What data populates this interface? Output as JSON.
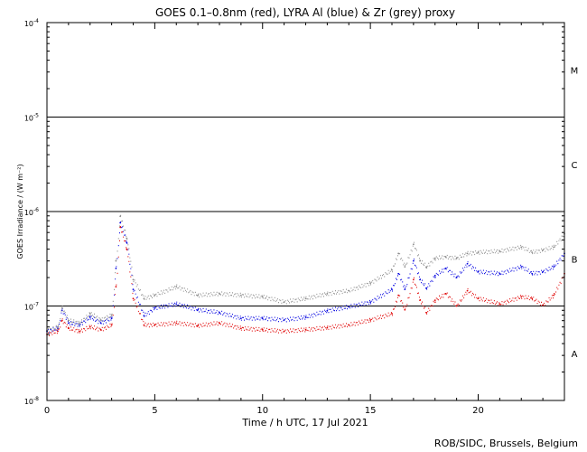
{
  "title": "GOES 0.1–0.8nm (red), LYRA Al (blue) & Zr (grey) proxy",
  "credit": "ROB/SIDC, Brussels, Belgium",
  "chart_data": {
    "type": "scatter",
    "title": "GOES 0.1–0.8nm (red), LYRA Al (blue) & Zr (grey) proxy",
    "xlabel": "Time / h UTC, 17 Jul 2021",
    "ylabel": "GOES Irradiance / (W m⁻²)",
    "xlim": [
      0,
      24
    ],
    "ylim_log10": [
      -8,
      -4
    ],
    "yscale": "log",
    "x_ticks": [
      {
        "value": 0,
        "label": "0"
      },
      {
        "value": 5,
        "label": "5"
      },
      {
        "value": 10,
        "label": "10"
      },
      {
        "value": 15,
        "label": "15"
      },
      {
        "value": 20,
        "label": "20"
      }
    ],
    "y_ticks": [
      {
        "exp": -8,
        "label": "10",
        "sup": "-8"
      },
      {
        "exp": -7,
        "label": "10",
        "sup": "-7"
      },
      {
        "exp": -6,
        "label": "10",
        "sup": "-6"
      },
      {
        "exp": -5,
        "label": "10",
        "sup": "-5"
      },
      {
        "exp": -4,
        "label": "10",
        "sup": "-4"
      }
    ],
    "threshold_lines_log10": [
      -7,
      -6,
      -5
    ],
    "flare_classes": [
      {
        "label": "A",
        "log10_center": -7.5
      },
      {
        "label": "B",
        "log10_center": -6.5
      },
      {
        "label": "C",
        "log10_center": -5.5
      },
      {
        "label": "M",
        "log10_center": -4.5
      }
    ],
    "series": [
      {
        "name": "red",
        "color": "#e00000",
        "x": [
          0,
          0.5,
          0.7,
          1.0,
          1.5,
          2.0,
          2.5,
          3.0,
          3.2,
          3.4,
          3.7,
          4.0,
          4.5,
          5.0,
          6.0,
          7.0,
          8.0,
          9.0,
          10.0,
          11.0,
          12.0,
          13.0,
          14.0,
          15.0,
          16.0,
          16.3,
          16.6,
          17.0,
          17.3,
          17.6,
          18.0,
          18.5,
          19.0,
          19.5,
          20.0,
          21.0,
          22.0,
          22.5,
          23.0,
          23.5,
          24.0
        ],
        "y": [
          5e-08,
          5.4e-08,
          7e-08,
          5.8e-08,
          5.4e-08,
          6e-08,
          5.6e-08,
          6.3e-08,
          1.6e-07,
          6.8e-07,
          4e-07,
          1.2e-07,
          6.3e-08,
          6.3e-08,
          6.6e-08,
          6.2e-08,
          6.6e-08,
          5.8e-08,
          5.6e-08,
          5.4e-08,
          5.6e-08,
          5.9e-08,
          6.3e-08,
          7.1e-08,
          8.3e-08,
          1.3e-07,
          9.1e-08,
          1.9e-07,
          1.15e-07,
          8.5e-08,
          1.15e-07,
          1.35e-07,
          1e-07,
          1.45e-07,
          1.2e-07,
          1.05e-07,
          1.25e-07,
          1.2e-07,
          1.02e-07,
          1.3e-07,
          2.2e-07
        ]
      },
      {
        "name": "blue",
        "color": "#0000e0",
        "x": [
          0,
          0.5,
          0.7,
          1.0,
          1.5,
          2.0,
          2.5,
          3.0,
          3.2,
          3.4,
          3.7,
          4.0,
          4.5,
          5.0,
          6.0,
          7.0,
          8.0,
          9.0,
          10.0,
          11.0,
          12.0,
          13.0,
          14.0,
          15.0,
          16.0,
          16.3,
          16.6,
          17.0,
          17.3,
          17.6,
          18.0,
          18.5,
          19.0,
          19.5,
          20.0,
          21.0,
          22.0,
          22.5,
          23.0,
          23.5,
          24.0
        ],
        "y": [
          5.4e-08,
          5.8e-08,
          9e-08,
          6.6e-08,
          6.3e-08,
          7.6e-08,
          6.6e-08,
          7.4e-08,
          2.5e-07,
          7.6e-07,
          4.7e-07,
          1.5e-07,
          7.9e-08,
          9.5e-08,
          1.05e-07,
          9.1e-08,
          8.5e-08,
          7.4e-08,
          7.4e-08,
          7.1e-08,
          7.6e-08,
          8.9e-08,
          9.8e-08,
          1.1e-07,
          1.5e-07,
          2.2e-07,
          1.5e-07,
          3e-07,
          1.9e-07,
          1.55e-07,
          2.1e-07,
          2.5e-07,
          2e-07,
          2.8e-07,
          2.3e-07,
          2.2e-07,
          2.6e-07,
          2.2e-07,
          2.3e-07,
          2.6e-07,
          3.6e-07
        ]
      },
      {
        "name": "grey",
        "color": "#8a8a8a",
        "x": [
          0,
          0.5,
          0.7,
          1.0,
          1.5,
          2.0,
          2.5,
          3.0,
          3.2,
          3.4,
          3.7,
          4.0,
          4.5,
          5.0,
          6.0,
          7.0,
          8.0,
          9.0,
          10.0,
          11.0,
          12.0,
          13.0,
          14.0,
          15.0,
          16.0,
          16.3,
          16.6,
          17.0,
          17.3,
          17.6,
          18.0,
          18.5,
          19.0,
          19.5,
          20.0,
          21.0,
          22.0,
          22.5,
          23.0,
          23.5,
          24.0
        ],
        "y": [
          5.5e-08,
          6e-08,
          9.5e-08,
          7e-08,
          6.6e-08,
          8.3e-08,
          7.1e-08,
          8e-08,
          3e-07,
          8.9e-07,
          5.2e-07,
          1.9e-07,
          1.2e-07,
          1.3e-07,
          1.6e-07,
          1.3e-07,
          1.35e-07,
          1.3e-07,
          1.25e-07,
          1.1e-07,
          1.2e-07,
          1.35e-07,
          1.45e-07,
          1.75e-07,
          2.4e-07,
          3.6e-07,
          2.6e-07,
          4.5e-07,
          3e-07,
          2.6e-07,
          3.2e-07,
          3.3e-07,
          3.2e-07,
          3.6e-07,
          3.7e-07,
          3.8e-07,
          4.2e-07,
          3.7e-07,
          3.9e-07,
          4.2e-07,
          5.8e-07
        ]
      }
    ]
  }
}
